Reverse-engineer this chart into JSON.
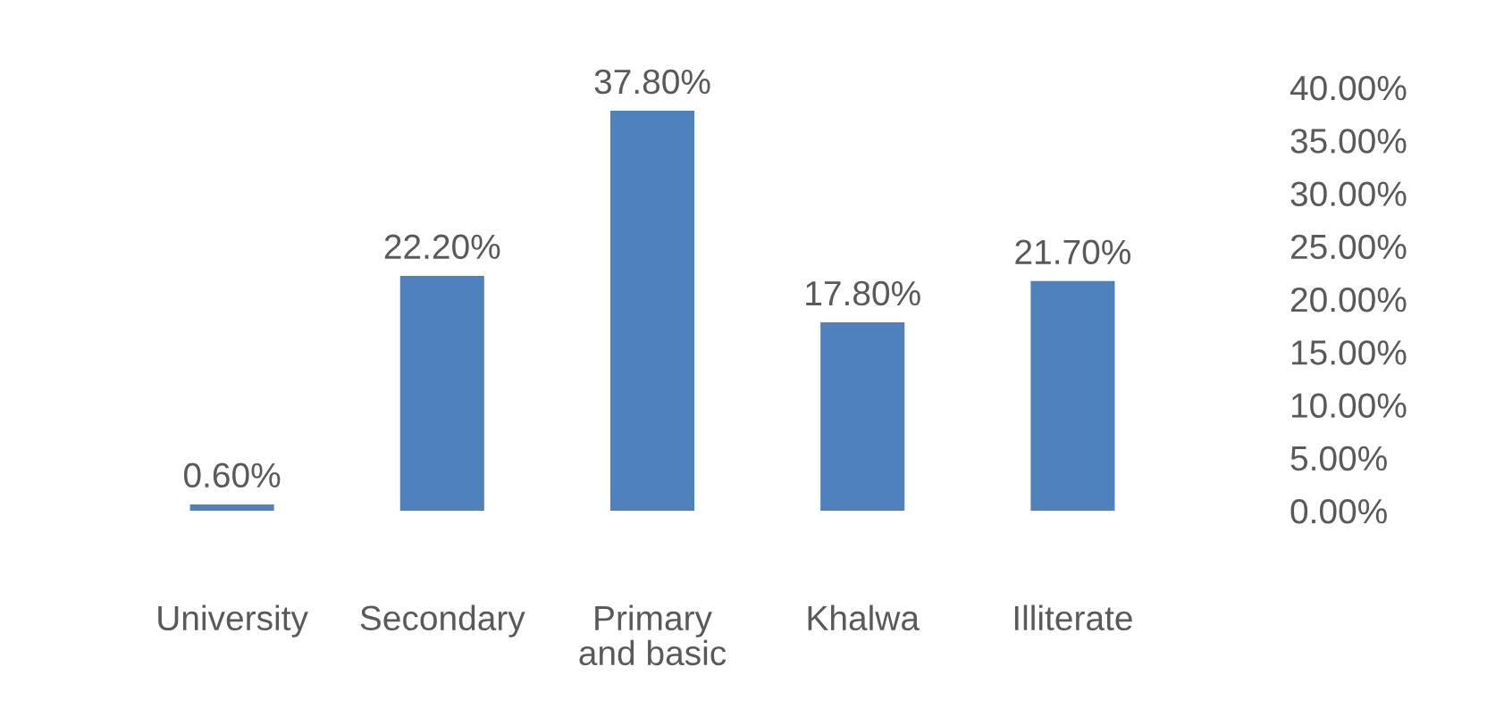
{
  "chart_data": {
    "type": "bar",
    "categories": [
      "University",
      "Secondary",
      "Primary\nand basic",
      "Khalwa",
      "Illiterate"
    ],
    "values": [
      0.6,
      22.2,
      37.8,
      17.8,
      21.7
    ],
    "value_labels": [
      "0.60%",
      "22.20%",
      "37.80%",
      "17.80%",
      "21.70%"
    ],
    "color": "#4f81bd",
    "ylim": [
      0,
      40
    ],
    "yticks": [
      {
        "value": 0,
        "label": "0.00%"
      },
      {
        "value": 5,
        "label": "5.00%"
      },
      {
        "value": 10,
        "label": "10.00%"
      },
      {
        "value": 15,
        "label": "15.00%"
      },
      {
        "value": 20,
        "label": "20.00%"
      },
      {
        "value": 25,
        "label": "25.00%"
      },
      {
        "value": 30,
        "label": "30.00%"
      },
      {
        "value": 35,
        "label": "35.00%"
      },
      {
        "value": 40,
        "label": "40.00%"
      }
    ]
  }
}
